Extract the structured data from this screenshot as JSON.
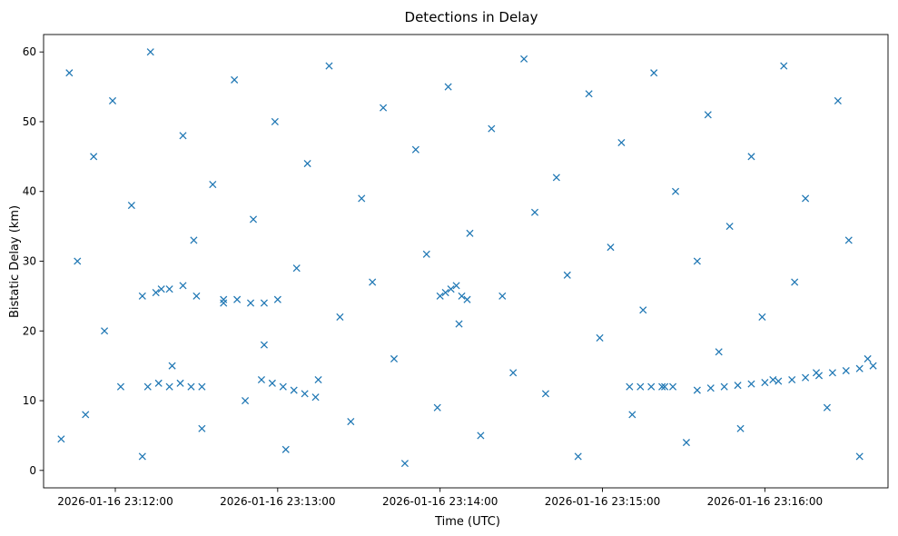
{
  "chart_data": {
    "type": "scatter",
    "title": "Detections in Delay",
    "xlabel": "Time (UTC)",
    "ylabel": "Bistatic Delay (km)",
    "x_ticks": [
      {
        "t": 720,
        "label": "2026-01-16 23:12:00"
      },
      {
        "t": 780,
        "label": "2026-01-16 23:13:00"
      },
      {
        "t": 840,
        "label": "2026-01-16 23:14:00"
      },
      {
        "t": 900,
        "label": "2026-01-16 23:15:00"
      },
      {
        "t": 960,
        "label": "2026-01-16 23:16:00"
      }
    ],
    "xlim": [
      693.5,
      1005.5
    ],
    "y_ticks": [
      0,
      10,
      20,
      30,
      40,
      50,
      60
    ],
    "ylim": [
      -2.5,
      62.5
    ],
    "marker": "x",
    "color": "#1f77b4",
    "grid": false,
    "legend": "none",
    "series": [
      {
        "x": [
          700,
          703,
          706,
          709,
          712,
          716,
          719,
          722,
          726,
          730,
          733,
          737,
          741,
          745,
          749,
          752,
          756,
          760,
          764,
          768,
          771,
          775,
          779,
          783,
          787,
          791,
          795,
          799,
          803,
          807,
          811,
          815,
          819,
          823,
          827,
          831,
          835,
          839,
          843,
          847,
          851,
          855,
          859,
          863,
          867,
          871,
          875,
          879,
          883,
          887,
          891,
          895,
          899,
          903,
          907,
          911,
          915,
          919,
          923,
          927,
          931,
          935,
          939,
          943,
          947,
          951,
          955,
          959,
          963,
          967,
          971,
          975,
          979,
          983,
          987,
          991,
          995,
          998
        ],
        "y": [
          4.5,
          57,
          30,
          8,
          45,
          20,
          53,
          12,
          38,
          2,
          60,
          26,
          15,
          48,
          33,
          6,
          41,
          24,
          56,
          10,
          36,
          18,
          50,
          3,
          29,
          44,
          13,
          58,
          22,
          7,
          39,
          27,
          52,
          16,
          1,
          46,
          31,
          9,
          55,
          21,
          34,
          5,
          49,
          25,
          14,
          59,
          37,
          11,
          42,
          28,
          2,
          54,
          19,
          32,
          47,
          8,
          23,
          57,
          12,
          40,
          4,
          30,
          51,
          17,
          35,
          6,
          45,
          22,
          13,
          58,
          27,
          39,
          14,
          9,
          53,
          33,
          2,
          16
        ]
      },
      {
        "x": [
          730,
          735,
          740,
          745,
          750
        ],
        "y": [
          25,
          25.5,
          26,
          26.5,
          25
        ]
      },
      {
        "x": [
          760,
          765,
          770,
          775,
          780
        ],
        "y": [
          24.5,
          24.5,
          24,
          24,
          24.5
        ]
      },
      {
        "x": [
          732,
          736,
          740,
          744,
          748,
          752
        ],
        "y": [
          12,
          12.5,
          12,
          12.5,
          12,
          12
        ]
      },
      {
        "x": [
          774,
          778,
          782,
          786,
          790,
          794
        ],
        "y": [
          13,
          12.5,
          12,
          11.5,
          11,
          10.5
        ]
      },
      {
        "x": [
          840,
          842,
          844,
          846,
          848,
          850
        ],
        "y": [
          25,
          25.5,
          26,
          26.5,
          25,
          24.5
        ]
      },
      {
        "x": [
          910,
          914,
          918,
          922,
          926
        ],
        "y": [
          12,
          12,
          12,
          12,
          12
        ]
      },
      {
        "x": [
          935,
          940,
          945,
          950,
          955,
          960,
          965,
          970,
          975,
          980,
          985,
          990,
          995,
          1000
        ],
        "y": [
          11.5,
          11.8,
          12,
          12.2,
          12.4,
          12.6,
          12.8,
          13,
          13.3,
          13.6,
          14,
          14.3,
          14.6,
          15
        ]
      }
    ]
  }
}
